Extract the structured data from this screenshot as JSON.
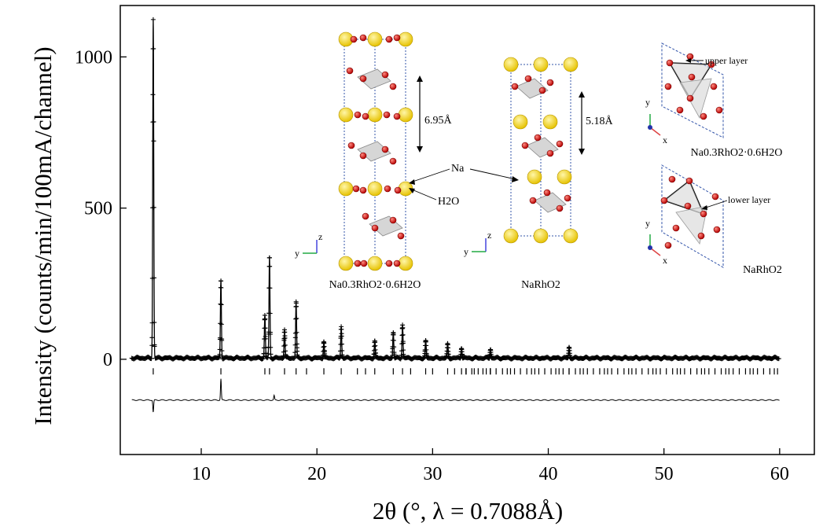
{
  "chart_data": {
    "type": "line",
    "xlabel": "2θ (°, λ = 0.7088Å)",
    "ylabel": "Intensity (counts/min/100mA/channel)",
    "xlim": [
      3,
      63
    ],
    "ylim": [
      -315,
      1170
    ],
    "xticks": [
      "10",
      "20",
      "30",
      "40",
      "50",
      "60"
    ],
    "yticks": [
      "0",
      "500",
      "1000"
    ],
    "x_range_measured": [
      4,
      60
    ],
    "peaks": [
      {
        "x": 5.85,
        "y": 1120
      },
      {
        "x": 11.7,
        "y": 255
      },
      {
        "x": 15.5,
        "y": 140
      },
      {
        "x": 15.9,
        "y": 330
      },
      {
        "x": 17.2,
        "y": 95
      },
      {
        "x": 18.2,
        "y": 185
      },
      {
        "x": 20.6,
        "y": 55
      },
      {
        "x": 22.1,
        "y": 105
      },
      {
        "x": 25.0,
        "y": 55
      },
      {
        "x": 26.6,
        "y": 85
      },
      {
        "x": 27.4,
        "y": 110
      },
      {
        "x": 29.4,
        "y": 55
      },
      {
        "x": 31.3,
        "y": 45
      },
      {
        "x": 32.5,
        "y": 35
      },
      {
        "x": 35.0,
        "y": 30
      },
      {
        "x": 41.8,
        "y": 35
      }
    ],
    "bragg_ticks_y": -40,
    "difference_offset": -135,
    "difference_features": [
      {
        "x": 5.85,
        "y": -175
      },
      {
        "x": 11.7,
        "y": -65
      },
      {
        "x": 16.3,
        "y": -120
      }
    ]
  },
  "insets": {
    "hydrated_formula": "Na0.3RhO2·0.6H2O",
    "anhydrous_formula": "NaRhO2",
    "spacing_hydrated": "6.95Å",
    "spacing_anhydrous": "5.18Å",
    "na_label": "Na",
    "h2o_label": "H2O",
    "upper_layer": "upper layer",
    "lower_layer": "lower layer",
    "axis_x": "x",
    "axis_y": "y",
    "axis_z": "z"
  }
}
